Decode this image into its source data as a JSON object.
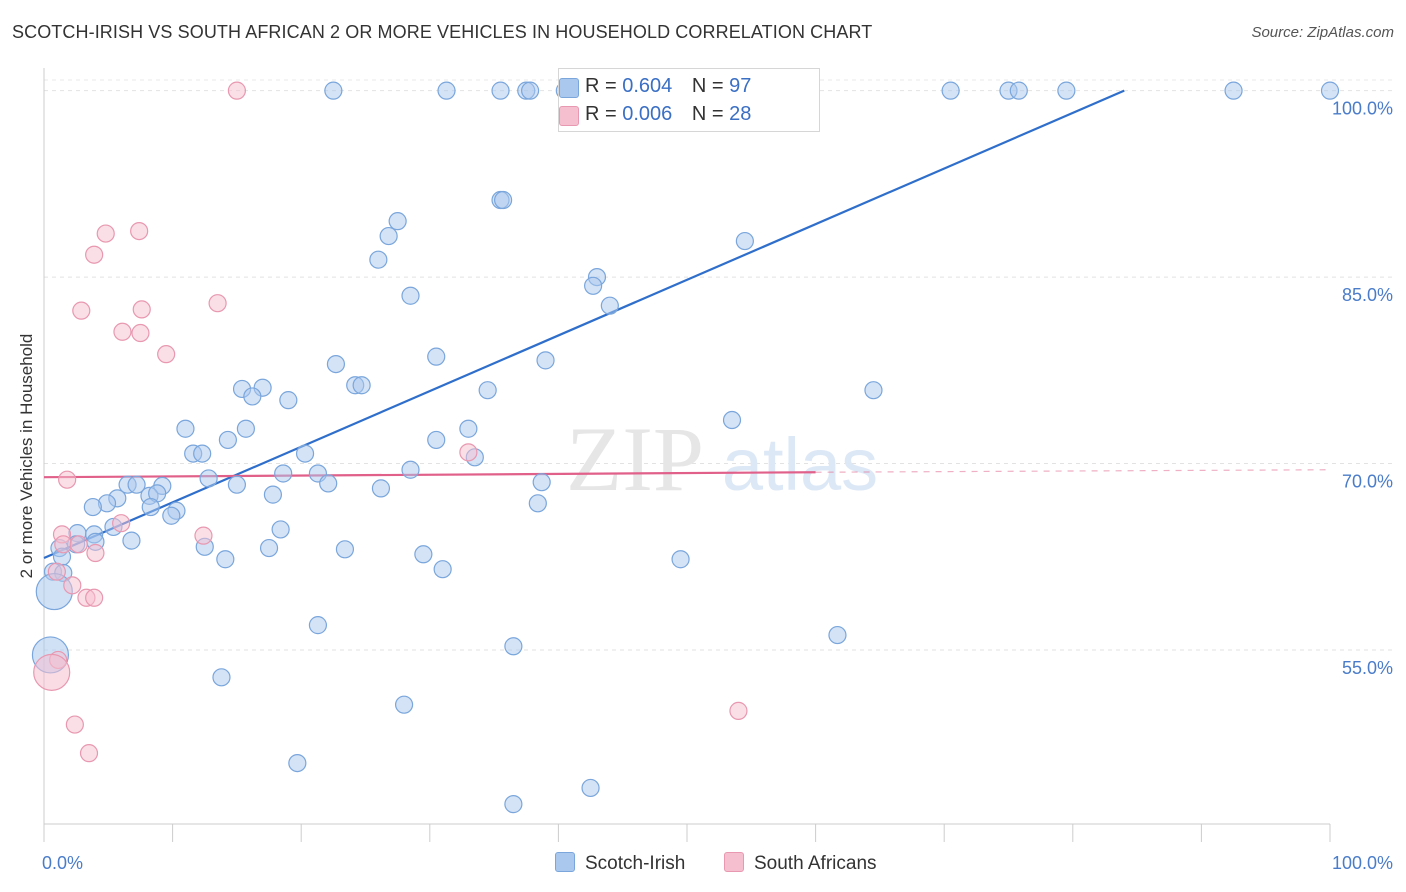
{
  "title": "SCOTCH-IRISH VS SOUTH AFRICAN 2 OR MORE VEHICLES IN HOUSEHOLD CORRELATION CHART",
  "source": "Source: ZipAtlas.com",
  "watermark": {
    "zip": "ZIP",
    "atlas": "atlas"
  },
  "legend": {
    "r_label": "R =",
    "n_label": "N =",
    "series": [
      {
        "r": "0.604",
        "n": "97"
      },
      {
        "r": "0.006",
        "n": "28"
      }
    ]
  },
  "colors": {
    "blue_fill": "#aac8ee",
    "blue_stroke": "#7aa6dc",
    "blue_line": "#2f6fcb",
    "pink_fill": "#f5bfcf",
    "pink_stroke": "#e898b0",
    "pink_line": "#e0608a",
    "tick_text": "#4a7cc9"
  },
  "chart_data": {
    "type": "scatter",
    "title": "SCOTCH-IRISH VS SOUTH AFRICAN 2 OR MORE VEHICLES IN HOUSEHOLD CORRELATION CHART",
    "xlabel": "",
    "ylabel": "2 or more Vehicles in Household",
    "xlim": [
      0,
      100
    ],
    "ylim": [
      41,
      101.5
    ],
    "x_tick_labels": [
      {
        "value": 0,
        "label": "0.0%"
      },
      {
        "value": 100,
        "label": "100.0%"
      }
    ],
    "y_tick_labels": [
      {
        "value": 55,
        "label": "55.0%"
      },
      {
        "value": 70,
        "label": "70.0%"
      },
      {
        "value": 85,
        "label": "85.0%"
      },
      {
        "value": 100,
        "label": "100.0%"
      }
    ],
    "grid": true,
    "legend_position": "top-center",
    "series": [
      {
        "name": "Scotch-Irish",
        "color": "blue",
        "trend": {
          "x": [
            0,
            84
          ],
          "y": [
            62.4,
            100
          ]
        },
        "points": [
          [
            22.5,
            100
          ],
          [
            31.3,
            100
          ],
          [
            35.5,
            100
          ],
          [
            37.5,
            100
          ],
          [
            37.8,
            100
          ],
          [
            40.5,
            100
          ],
          [
            46.5,
            100
          ],
          [
            52.5,
            100
          ],
          [
            55.5,
            100
          ],
          [
            70.5,
            100
          ],
          [
            75,
            100
          ],
          [
            75.8,
            100
          ],
          [
            79.5,
            100
          ],
          [
            92.5,
            100
          ],
          [
            100,
            100
          ],
          [
            35.5,
            91.2
          ],
          [
            35.7,
            91.2
          ],
          [
            54.5,
            87.9
          ],
          [
            27.5,
            89.5
          ],
          [
            26.8,
            88.3
          ],
          [
            26,
            86.4
          ],
          [
            43,
            85
          ],
          [
            42.7,
            84.3
          ],
          [
            28.5,
            83.5
          ],
          [
            44,
            82.7
          ],
          [
            30.5,
            78.6
          ],
          [
            39,
            78.3
          ],
          [
            22.7,
            78
          ],
          [
            24.2,
            76.3
          ],
          [
            24.7,
            76.3
          ],
          [
            15.4,
            76
          ],
          [
            17,
            76.1
          ],
          [
            16.2,
            75.4
          ],
          [
            19,
            75.1
          ],
          [
            34.5,
            75.9
          ],
          [
            64.5,
            75.9
          ],
          [
            53.5,
            73.5
          ],
          [
            11,
            72.8
          ],
          [
            15.7,
            72.8
          ],
          [
            33,
            72.8
          ],
          [
            14.3,
            71.9
          ],
          [
            30.5,
            71.9
          ],
          [
            11.6,
            70.8
          ],
          [
            12.3,
            70.8
          ],
          [
            20.3,
            70.8
          ],
          [
            33.5,
            70.5
          ],
          [
            28.5,
            69.5
          ],
          [
            18.6,
            69.2
          ],
          [
            21.3,
            69.2
          ],
          [
            12.8,
            68.8
          ],
          [
            15,
            68.3
          ],
          [
            22.1,
            68.4
          ],
          [
            38.7,
            68.5
          ],
          [
            6.5,
            68.3
          ],
          [
            7.2,
            68.3
          ],
          [
            9.2,
            68.2
          ],
          [
            26.2,
            68
          ],
          [
            8.2,
            67.4
          ],
          [
            8.8,
            67.6
          ],
          [
            17.8,
            67.5
          ],
          [
            5.7,
            67.2
          ],
          [
            4.9,
            66.8
          ],
          [
            3.8,
            66.5
          ],
          [
            8.3,
            66.5
          ],
          [
            38.4,
            66.8
          ],
          [
            10.3,
            66.2
          ],
          [
            9.9,
            65.8
          ],
          [
            5.4,
            64.9
          ],
          [
            18.4,
            64.7
          ],
          [
            2.6,
            64.4
          ],
          [
            3.9,
            64.3
          ],
          [
            6.8,
            63.8
          ],
          [
            4,
            63.7
          ],
          [
            1.2,
            63.2
          ],
          [
            2.5,
            63.5
          ],
          [
            12.5,
            63.3
          ],
          [
            17.5,
            63.2
          ],
          [
            23.4,
            63.1
          ],
          [
            14.1,
            62.3
          ],
          [
            29.5,
            62.7
          ],
          [
            49.5,
            62.3
          ],
          [
            1.4,
            62.5
          ],
          [
            31,
            61.5
          ],
          [
            0.7,
            61.3
          ],
          [
            1.5,
            61.2
          ],
          [
            0.8,
            59.7
          ],
          [
            21.3,
            57
          ],
          [
            36.5,
            55.3
          ],
          [
            61.7,
            56.2
          ],
          [
            0.5,
            54.6
          ],
          [
            13.8,
            52.8
          ],
          [
            28,
            50.6
          ],
          [
            19.7,
            45.9
          ],
          [
            42.5,
            43.9
          ],
          [
            36.5,
            42.6
          ]
        ],
        "big_points": [
          [
            0.8,
            59.7
          ],
          [
            0.5,
            54.6
          ]
        ]
      },
      {
        "name": "South Africans",
        "color": "pink",
        "trend": {
          "x": [
            0,
            60
          ],
          "y": [
            68.9,
            69.3
          ]
        },
        "trend_dashed_to": {
          "x": [
            60,
            100
          ],
          "y": [
            69.3,
            69.5
          ]
        },
        "points": [
          [
            15,
            100
          ],
          [
            7.4,
            88.7
          ],
          [
            4.8,
            88.5
          ],
          [
            3.9,
            86.8
          ],
          [
            7.6,
            82.4
          ],
          [
            13.5,
            82.9
          ],
          [
            2.9,
            82.3
          ],
          [
            6.1,
            80.6
          ],
          [
            7.5,
            80.5
          ],
          [
            9.5,
            78.8
          ],
          [
            33,
            70.9
          ],
          [
            1.8,
            68.7
          ],
          [
            6,
            65.2
          ],
          [
            1.4,
            64.3
          ],
          [
            12.4,
            64.2
          ],
          [
            1.5,
            63.5
          ],
          [
            2.7,
            63.5
          ],
          [
            4,
            62.8
          ],
          [
            1,
            61.3
          ],
          [
            2.2,
            60.2
          ],
          [
            3.3,
            59.2
          ],
          [
            3.9,
            59.2
          ],
          [
            1.1,
            54.2
          ],
          [
            0.6,
            53.2
          ],
          [
            54,
            50.1
          ],
          [
            2.4,
            49
          ],
          [
            3.5,
            46.7
          ]
        ],
        "big_points": [
          [
            0.6,
            53.2
          ]
        ]
      }
    ]
  },
  "bottom_legend": [
    "Scotch-Irish",
    "South Africans"
  ]
}
